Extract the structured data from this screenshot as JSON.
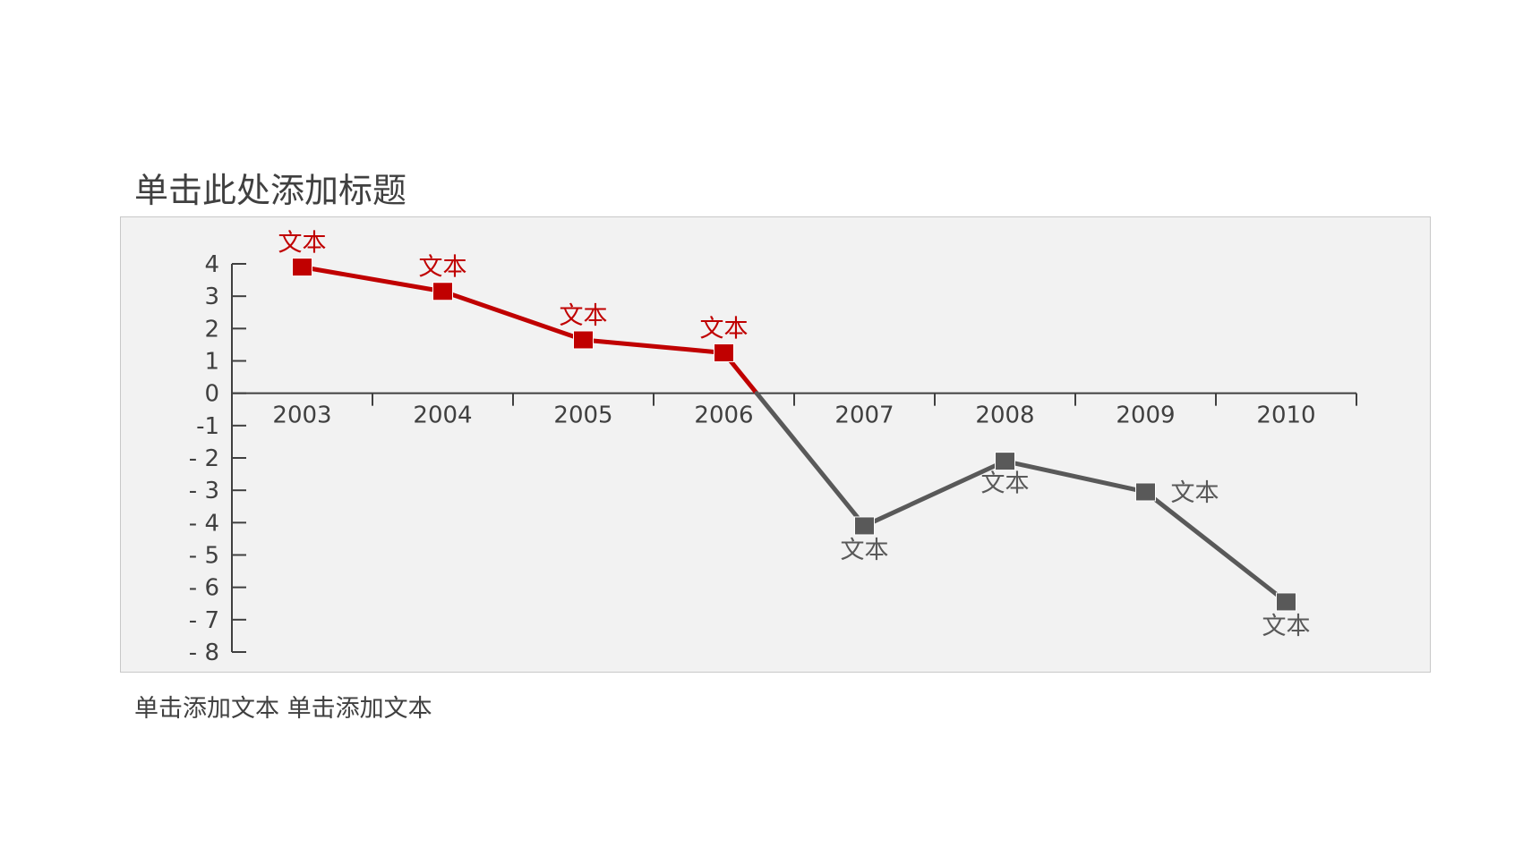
{
  "slide": {
    "title": "单击此处添加标题",
    "footnote": "单击添加文本 单击添加文本"
  },
  "chart_data": {
    "type": "line",
    "title": "",
    "xlabel": "",
    "ylabel": "",
    "categories": [
      "2003",
      "2004",
      "2005",
      "2006",
      "2007",
      "2008",
      "2009",
      "2010"
    ],
    "values": [
      3.9,
      3.15,
      1.65,
      1.25,
      -4.1,
      -2.1,
      -3.05,
      -6.45
    ],
    "data_labels": [
      "文本",
      "文本",
      "文本",
      "文本",
      "文本",
      "文本",
      "文本",
      "文本"
    ],
    "ylim": [
      -8,
      4
    ],
    "yticks": [
      {
        "value": 4,
        "label": "4"
      },
      {
        "value": 3,
        "label": "3"
      },
      {
        "value": 2,
        "label": "2"
      },
      {
        "value": 1,
        "label": "1"
      },
      {
        "value": 0,
        "label": "0"
      },
      {
        "value": -1,
        "label": "-1"
      },
      {
        "value": -2,
        "label": "- 2"
      },
      {
        "value": -3,
        "label": "- 3"
      },
      {
        "value": -4,
        "label": "- 4"
      },
      {
        "value": -5,
        "label": "- 5"
      },
      {
        "value": -6,
        "label": "- 6"
      },
      {
        "value": -7,
        "label": "- 7"
      },
      {
        "value": -8,
        "label": "- 8"
      }
    ],
    "grid": false,
    "legend": "none",
    "colors": {
      "positive": "#c00000",
      "negative": "#595959",
      "axis": "#404040",
      "panel": "#f2f2f2"
    }
  }
}
